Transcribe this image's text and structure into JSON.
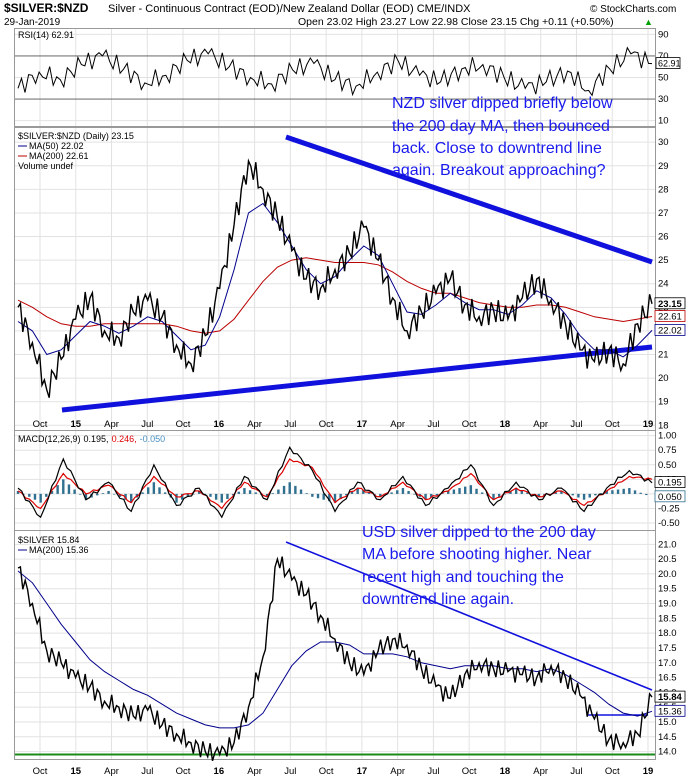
{
  "header": {
    "symbol": "$SILVER:$NZD",
    "description": "Silver - Continuous Contract (EOD)/New Zealand Dollar (EOD) CME/INDX",
    "watermark": "© StockCharts.com",
    "date": "29-Jan-2019",
    "quote": "Open 23.02  High 23.27  Low 22.98  Close 23.15  Chg +0.11 (+0.50%)",
    "quote_arrow": "▲"
  },
  "chart_data": [
    {
      "type": "line",
      "panel": "rsi",
      "legend": "RSI(14) 62.91",
      "y_ticks": [
        90,
        70,
        50,
        30,
        10
      ],
      "ylim": [
        5,
        95
      ],
      "last_value_label": "62.91",
      "reference_lines": [
        70,
        30
      ],
      "series": [
        {
          "name": "RSI(14)",
          "values": [
            40,
            55,
            48,
            62,
            70,
            58,
            45,
            52,
            66,
            72,
            60,
            50,
            44,
            57,
            63,
            48,
            42,
            55,
            65,
            52,
            46,
            58,
            62,
            50,
            40,
            46,
            56,
            38,
            58,
            72,
            62.91
          ]
        }
      ]
    },
    {
      "type": "line",
      "panel": "silver_nzd",
      "legend": [
        "$SILVER:$NZD (Daily) 23.15",
        "MA(50) 22.02",
        "MA(200) 22.61",
        "Volume undef"
      ],
      "ylim": [
        17.8,
        30.6
      ],
      "y_ticks": [
        30,
        29,
        28,
        27,
        26,
        25,
        24,
        23,
        22,
        21,
        20,
        19,
        18
      ],
      "x_ticks": [
        "Oct",
        "15",
        "Apr",
        "Jul",
        "Oct",
        "16",
        "Apr",
        "Jul",
        "Oct",
        "17",
        "Apr",
        "Jul",
        "Oct",
        "18",
        "Apr",
        "Jul",
        "Oct",
        "19"
      ],
      "price_labels": [
        "23.15",
        "22.61",
        "22.02"
      ],
      "series": [
        {
          "name": "$SILVER:$NZD",
          "values": [
            23.0,
            21.5,
            19.5,
            20.8,
            22.5,
            23.4,
            22.0,
            21.7,
            22.8,
            23.3,
            22.6,
            21.4,
            20.6,
            21.8,
            23.8,
            26.5,
            29.2,
            28.0,
            26.8,
            25.4,
            24.2,
            23.8,
            24.6,
            25.3,
            26.4,
            25.0,
            23.4,
            22.0,
            22.8,
            23.6,
            24.2,
            23.1,
            22.6,
            22.9,
            22.5,
            23.4,
            24.2,
            23.3,
            22.3,
            21.2,
            20.7,
            21.2,
            20.6,
            22.3,
            23.15
          ]
        },
        {
          "name": "MA(50)",
          "values": [
            22.4,
            22.0,
            21.0,
            21.2,
            21.8,
            22.4,
            22.2,
            21.9,
            22.2,
            22.6,
            22.4,
            21.8,
            21.2,
            21.4,
            22.6,
            24.6,
            27.0,
            27.4,
            26.6,
            25.6,
            24.6,
            24.0,
            24.3,
            25.0,
            25.6,
            25.2,
            24.0,
            22.8,
            22.7,
            23.1,
            23.6,
            23.2,
            22.9,
            22.9,
            22.7,
            23.1,
            23.7,
            23.4,
            22.7,
            21.8,
            21.2,
            21.2,
            20.9,
            21.4,
            22.02
          ]
        },
        {
          "name": "MA(200)",
          "values": [
            23.3,
            23.0,
            22.6,
            22.3,
            22.2,
            22.2,
            22.3,
            22.3,
            22.3,
            22.3,
            22.3,
            22.2,
            22.0,
            21.9,
            22.0,
            22.5,
            23.3,
            24.1,
            24.7,
            25.0,
            25.1,
            25.0,
            24.9,
            24.9,
            24.9,
            24.8,
            24.5,
            24.1,
            23.8,
            23.6,
            23.6,
            23.4,
            23.2,
            23.1,
            23.0,
            23.0,
            23.1,
            23.1,
            23.0,
            22.8,
            22.6,
            22.5,
            22.4,
            22.5,
            22.61
          ]
        }
      ],
      "annotation": [
        "NZD silver dipped briefly below",
        "the 200 day MA, then bounced",
        "back. Close to downtrend line",
        "again. Breakout approaching?"
      ]
    },
    {
      "type": "line",
      "panel": "macd",
      "legend_prefix": "MACD(12,26,9)",
      "legend_values": [
        "0.195,",
        "0.246,",
        "-0.050"
      ],
      "ylim": [
        -0.62,
        1.08
      ],
      "y_ticks": [
        "1.00",
        "0.75",
        "0.50",
        "0.25",
        "0.00",
        "-0.25",
        "-0.50"
      ],
      "y_tick_values": [
        1.0,
        0.75,
        0.5,
        0.25,
        0.0,
        -0.25,
        -0.5
      ],
      "value_labels": [
        "0.195",
        "0.050"
      ],
      "series": [
        {
          "name": "MACD",
          "values": [
            0.1,
            -0.4,
            0.6,
            -0.1,
            0.2,
            -0.3,
            0.5,
            -0.2,
            0.1,
            -0.4,
            0.3,
            -0.1,
            0.8,
            0.4,
            -0.3,
            0.2,
            -0.1,
            0.3,
            -0.2,
            0.1,
            0.5,
            -0.2,
            0.2,
            -0.1,
            0.1,
            -0.3,
            0.1,
            0.4,
            0.19
          ]
        },
        {
          "name": "Signal",
          "values": [
            0.05,
            -0.25,
            0.35,
            0.0,
            0.15,
            -0.15,
            0.3,
            -0.05,
            0.05,
            -0.25,
            0.2,
            -0.05,
            0.6,
            0.45,
            -0.15,
            0.1,
            -0.05,
            0.2,
            -0.1,
            0.05,
            0.35,
            -0.1,
            0.1,
            -0.05,
            0.05,
            -0.2,
            0.05,
            0.3,
            0.25
          ]
        }
      ]
    },
    {
      "type": "line",
      "panel": "silver_usd",
      "legend": [
        "$SILVER 15.84",
        "MA(200) 15.36"
      ],
      "ylim": [
        13.75,
        21.45
      ],
      "y_ticks": [
        "21.0",
        "20.5",
        "20.0",
        "19.5",
        "19.0",
        "18.5",
        "18.0",
        "17.5",
        "17.0",
        "16.5",
        "16.0",
        "15.5",
        "15.0",
        "14.5",
        "14.0"
      ],
      "y_tick_values": [
        21.0,
        20.5,
        20.0,
        19.5,
        19.0,
        18.5,
        18.0,
        17.5,
        17.0,
        16.5,
        16.0,
        15.5,
        15.0,
        14.5,
        14.0
      ],
      "x_ticks": [
        "Oct",
        "15",
        "Apr",
        "Jul",
        "Oct",
        "16",
        "Apr",
        "Jul",
        "Oct",
        "17",
        "Apr",
        "Jul",
        "Oct",
        "18",
        "Apr",
        "Jul",
        "Oct",
        "19"
      ],
      "price_labels": [
        "15.84",
        "15.36"
      ],
      "support_level": 13.9,
      "series": [
        {
          "name": "$SILVER",
          "values": [
            20.2,
            19.0,
            17.4,
            17.0,
            16.5,
            16.2,
            15.7,
            15.5,
            15.2,
            15.4,
            14.9,
            14.6,
            14.3,
            14.0,
            13.9,
            14.3,
            15.5,
            17.2,
            20.5,
            19.8,
            19.3,
            18.6,
            17.8,
            17.0,
            16.6,
            17.4,
            17.8,
            17.6,
            16.8,
            16.2,
            15.8,
            16.6,
            17.0,
            16.8,
            16.7,
            16.6,
            16.5,
            16.9,
            16.5,
            15.9,
            15.1,
            14.4,
            14.3,
            14.6,
            15.84
          ]
        },
        {
          "name": "MA(200)",
          "values": [
            20.1,
            19.7,
            19.0,
            18.3,
            17.7,
            17.1,
            16.7,
            16.4,
            16.1,
            15.9,
            15.6,
            15.3,
            15.1,
            14.9,
            14.8,
            14.8,
            14.9,
            15.3,
            16.1,
            16.9,
            17.4,
            17.7,
            17.7,
            17.6,
            17.3,
            17.3,
            17.3,
            17.2,
            17.0,
            16.9,
            16.8,
            16.9,
            16.9,
            16.9,
            16.8,
            16.8,
            16.7,
            16.8,
            16.6,
            16.3,
            16.0,
            15.6,
            15.3,
            15.2,
            15.36
          ]
        }
      ],
      "annotation": [
        "USD silver dipped to the 200 day",
        "MA before shooting higher. Near",
        "recent high and touching the",
        "downtrend line again."
      ]
    }
  ]
}
